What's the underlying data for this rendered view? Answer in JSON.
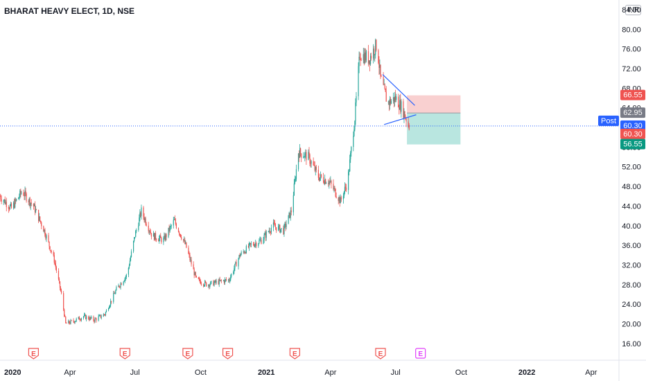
{
  "header": {
    "symbol_title": "BHARAT HEAVY ELECT, 1D, NSE",
    "currency": "INR"
  },
  "colors": {
    "up": "#26a69a",
    "down": "#ef5350",
    "stop_zone": "#f9d0d0",
    "target_zone": "#b9e6e0",
    "pattern_line": "#2962ff",
    "post_badge": "#2962ff",
    "entry_badge": "#787b86",
    "earnings_past": "#ef5350",
    "earnings_future": "#e040fb"
  },
  "chart_data": {
    "type": "candlestick",
    "ylim": [
      14,
      84
    ],
    "y_ticks": [
      16,
      20,
      24,
      28,
      32,
      36,
      40,
      44,
      48,
      52,
      56,
      60,
      64,
      68,
      72,
      76,
      80,
      84
    ],
    "x_range": [
      "2019-12-25",
      "2022-05-10"
    ],
    "x_ticks": [
      {
        "date": "2020-01-01",
        "label": "2020",
        "bold": true
      },
      {
        "date": "2020-04-01",
        "label": "Apr",
        "bold": false
      },
      {
        "date": "2020-07-01",
        "label": "Jul",
        "bold": false
      },
      {
        "date": "2020-10-01",
        "label": "Oct",
        "bold": false
      },
      {
        "date": "2021-01-01",
        "label": "2021",
        "bold": true
      },
      {
        "date": "2021-04-01",
        "label": "Apr",
        "bold": false
      },
      {
        "date": "2021-07-01",
        "label": "Jul",
        "bold": false
      },
      {
        "date": "2021-10-01",
        "label": "Oct",
        "bold": false
      },
      {
        "date": "2022-01-01",
        "label": "2022",
        "bold": true
      },
      {
        "date": "2022-04-01",
        "label": "Apr",
        "bold": false
      }
    ],
    "price_path": [
      [
        "2019-12-25",
        46
      ],
      [
        "2020-01-10",
        43.5
      ],
      [
        "2020-01-25",
        47
      ],
      [
        "2020-02-10",
        44
      ],
      [
        "2020-02-25",
        39
      ],
      [
        "2020-03-10",
        33
      ],
      [
        "2020-03-20",
        26
      ],
      [
        "2020-03-26",
        20
      ],
      [
        "2020-04-05",
        20.5
      ],
      [
        "2020-04-20",
        21.5
      ],
      [
        "2020-05-05",
        20.8
      ],
      [
        "2020-05-20",
        22
      ],
      [
        "2020-06-05",
        27
      ],
      [
        "2020-06-20",
        30
      ],
      [
        "2020-07-01",
        38
      ],
      [
        "2020-07-10",
        43
      ],
      [
        "2020-07-25",
        38
      ],
      [
        "2020-08-10",
        37
      ],
      [
        "2020-08-25",
        41
      ],
      [
        "2020-09-10",
        36
      ],
      [
        "2020-09-25",
        29
      ],
      [
        "2020-10-10",
        28
      ],
      [
        "2020-10-25",
        28.5
      ],
      [
        "2020-11-10",
        29
      ],
      [
        "2020-11-25",
        34
      ],
      [
        "2020-12-10",
        36
      ],
      [
        "2020-12-25",
        37
      ],
      [
        "2021-01-10",
        40
      ],
      [
        "2021-01-25",
        39
      ],
      [
        "2021-02-05",
        43
      ],
      [
        "2021-02-15",
        55
      ],
      [
        "2021-03-01",
        54
      ],
      [
        "2021-03-15",
        50
      ],
      [
        "2021-03-30",
        49
      ],
      [
        "2021-04-15",
        45
      ],
      [
        "2021-04-25",
        49
      ],
      [
        "2021-05-05",
        62
      ],
      [
        "2021-05-12",
        75
      ],
      [
        "2021-05-25",
        74
      ],
      [
        "2021-06-05",
        77
      ],
      [
        "2021-06-10",
        70
      ],
      [
        "2021-06-20",
        65
      ],
      [
        "2021-07-01",
        66
      ],
      [
        "2021-07-10",
        64
      ],
      [
        "2021-07-20",
        60.3
      ]
    ],
    "last_price": 60.3,
    "trade_setup": {
      "position": "short",
      "start": "2021-07-17",
      "end": "2021-09-30",
      "stop_loss": 66.55,
      "entry": 62.95,
      "target": 56.55
    },
    "pattern_lines": [
      {
        "from": [
          "2021-06-13",
          70.8
        ],
        "to": [
          "2021-07-28",
          64.5
        ]
      },
      {
        "from": [
          "2021-06-15",
          60.6
        ],
        "to": [
          "2021-07-30",
          62.6
        ]
      }
    ],
    "price_labels": [
      {
        "value": 66.55,
        "text": "66.55",
        "color": "#ef5350"
      },
      {
        "value": 62.95,
        "text": "62.95",
        "color": "#787b86"
      },
      {
        "value": 60.3,
        "text": "60.30",
        "color": "#2962ff"
      },
      {
        "value": 60.3,
        "text": "60.30",
        "color": "#ef5350",
        "row_offset": 1
      },
      {
        "value": 56.55,
        "text": "56.55",
        "color": "#089981"
      }
    ],
    "post_label": "Post",
    "earnings": [
      {
        "date": "2020-02-10",
        "label": "E",
        "future": false
      },
      {
        "date": "2020-06-17",
        "label": "E",
        "future": false
      },
      {
        "date": "2020-09-13",
        "label": "E",
        "future": false
      },
      {
        "date": "2020-11-08",
        "label": "E",
        "future": false
      },
      {
        "date": "2021-02-10",
        "label": "E",
        "future": false
      },
      {
        "date": "2021-06-10",
        "label": "E",
        "future": false
      },
      {
        "date": "2021-08-05",
        "label": "E",
        "future": true
      }
    ]
  }
}
